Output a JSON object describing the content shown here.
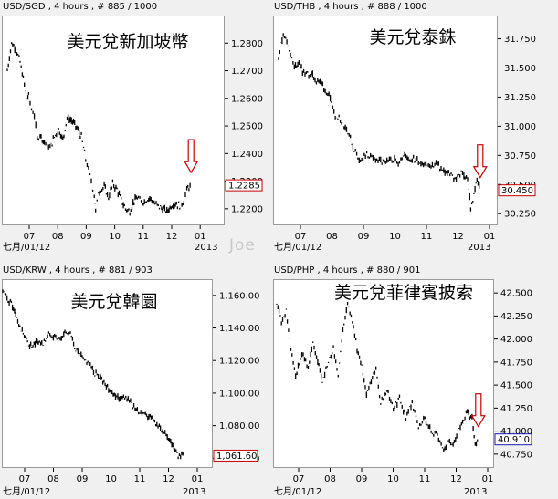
{
  "watermark": "Joe",
  "chart_data": [
    {
      "type": "line",
      "header": "USD/SGD , 4 hours , # 885 / 1000",
      "title": "美元兌新加坡幣",
      "x_ticks": [
        "07",
        "08",
        "09",
        "10",
        "11",
        "12",
        "01"
      ],
      "start_label": "七月/01/12",
      "year_label": "2013",
      "y_ticks": [
        "1.2800",
        "1.2700",
        "1.2600",
        "1.2500",
        "1.2400",
        "1.2300",
        "1.2200"
      ],
      "ylim": [
        1.214,
        1.29
      ],
      "last_value": "1.2285",
      "last_value_num": 1.2285,
      "arrow": true,
      "series_color": "#000000",
      "box_color": "#cc0000",
      "arrow_color": "#cc0000",
      "x": [
        0.0,
        0.15,
        0.3,
        0.45,
        0.6,
        0.7,
        0.75,
        0.85,
        0.95,
        1.05,
        1.15,
        1.3,
        1.4,
        1.5,
        1.65,
        1.8,
        1.95,
        2.1,
        2.25,
        2.4,
        2.6,
        2.75,
        2.85,
        2.95,
        3.05,
        3.1,
        3.2,
        3.4,
        3.55,
        3.7,
        3.85,
        4.0,
        4.15,
        4.3,
        4.45,
        4.6,
        4.7,
        4.85,
        5.0,
        5.15,
        5.3,
        5.45,
        5.6,
        5.75,
        5.9,
        6.05,
        6.2,
        6.3,
        6.45
      ],
      "values": [
        1.27,
        1.28,
        1.278,
        1.273,
        1.265,
        1.26,
        1.261,
        1.256,
        1.254,
        1.245,
        1.247,
        1.244,
        1.244,
        1.242,
        1.246,
        1.249,
        1.245,
        1.253,
        1.252,
        1.25,
        1.246,
        1.238,
        1.234,
        1.23,
        1.225,
        1.219,
        1.226,
        1.228,
        1.224,
        1.229,
        1.227,
        1.223,
        1.22,
        1.219,
        1.223,
        1.224,
        1.222,
        1.223,
        1.224,
        1.222,
        1.221,
        1.22,
        1.219,
        1.221,
        1.222,
        1.221,
        1.223,
        1.227,
        1.2285
      ]
    },
    {
      "type": "line",
      "header": "USD/THB , 4 hours , # 888 / 1000",
      "title": "美元兌泰銖",
      "x_ticks": [
        "07",
        "08",
        "09",
        "10",
        "11",
        "12",
        "01"
      ],
      "start_label": "七月/01/12",
      "year_label": "2013",
      "y_ticks": [
        "31.750",
        "31.500",
        "31.250",
        "31.000",
        "30.750",
        "30.500",
        "30.250"
      ],
      "ylim": [
        30.15,
        31.95
      ],
      "last_value": "30.450",
      "last_value_num": 30.45,
      "arrow": true,
      "series_color": "#000000",
      "box_color": "#cc0000",
      "arrow_color": "#cc0000",
      "x": [
        0.0,
        0.15,
        0.3,
        0.5,
        0.65,
        0.8,
        1.0,
        1.2,
        1.4,
        1.6,
        1.8,
        2.0,
        2.2,
        2.4,
        2.6,
        2.8,
        3.0,
        3.2,
        3.4,
        3.6,
        3.8,
        4.0,
        4.2,
        4.4,
        4.6,
        4.8,
        5.0,
        5.2,
        5.4,
        5.6,
        5.8,
        6.0,
        6.1,
        6.2,
        6.3,
        6.4
      ],
      "values": [
        31.6,
        31.8,
        31.7,
        31.5,
        31.55,
        31.45,
        31.45,
        31.4,
        31.35,
        31.25,
        31.1,
        31.05,
        30.95,
        30.8,
        30.7,
        30.75,
        30.72,
        30.7,
        30.68,
        30.72,
        30.7,
        30.75,
        30.72,
        30.7,
        30.68,
        30.65,
        30.68,
        30.62,
        30.6,
        30.55,
        30.6,
        30.55,
        30.3,
        30.4,
        30.55,
        30.45
      ]
    },
    {
      "type": "line",
      "header": "USD/KRW , 4 hours , # 881 / 903",
      "title": "美元兌韓圜",
      "x_ticks": [
        "07",
        "08",
        "09",
        "10",
        "11",
        "12",
        "01"
      ],
      "start_label": "七月/01/12",
      "year_label": "2013",
      "y_ticks": [
        "1,160.00",
        "1,140.00",
        "1,120.00",
        "1,100.00",
        "1,080.00",
        "1,060.00"
      ],
      "ylim": [
        1054,
        1170
      ],
      "last_value": "1,061.60",
      "last_value_num": 1061.6,
      "arrow": false,
      "series_color": "#000000",
      "box_color": "#cc0000",
      "x": [
        0.0,
        0.15,
        0.3,
        0.45,
        0.6,
        0.75,
        0.9,
        1.05,
        1.2,
        1.4,
        1.6,
        1.8,
        2.0,
        2.2,
        2.35,
        2.5,
        2.65,
        2.8,
        3.0,
        3.2,
        3.4,
        3.6,
        3.8,
        4.0,
        4.2,
        4.4,
        4.6,
        4.8,
        5.0,
        5.2,
        5.4,
        5.6,
        5.8,
        5.95,
        6.1,
        6.3
      ],
      "values": [
        1163,
        1158,
        1155,
        1148,
        1140,
        1135,
        1130,
        1128,
        1132,
        1130,
        1136,
        1135,
        1133,
        1138,
        1136,
        1128,
        1124,
        1121,
        1118,
        1112,
        1110,
        1105,
        1100,
        1097,
        1098,
        1095,
        1090,
        1088,
        1086,
        1084,
        1080,
        1076,
        1070,
        1066,
        1062,
        1061.6
      ]
    },
    {
      "type": "line",
      "header": "USD/PHP , 4 hours , # 880 / 901",
      "title": "美元兌菲律賓披索",
      "x_ticks": [
        "07",
        "08",
        "09",
        "10",
        "11",
        "12",
        "01"
      ],
      "start_label": "七月/01/12",
      "year_label": "2013",
      "y_ticks": [
        "42.500",
        "42.250",
        "42.000",
        "41.750",
        "41.500",
        "41.250",
        "41.000",
        "40.750"
      ],
      "ylim": [
        40.6,
        42.65
      ],
      "last_value": "40.910",
      "last_value_num": 40.91,
      "arrow": true,
      "series_color": "#000000",
      "box_color": "#1a1ab0",
      "arrow_color": "#cc0000",
      "x": [
        0.0,
        0.15,
        0.3,
        0.45,
        0.6,
        0.8,
        1.0,
        1.15,
        1.3,
        1.45,
        1.6,
        1.8,
        1.95,
        2.1,
        2.25,
        2.4,
        2.55,
        2.7,
        2.85,
        3.0,
        3.15,
        3.3,
        3.5,
        3.7,
        3.9,
        4.1,
        4.3,
        4.5,
        4.7,
        4.9,
        5.1,
        5.3,
        5.45,
        5.6,
        5.75,
        5.9,
        6.05,
        6.2,
        6.3,
        6.4
      ],
      "values": [
        42.4,
        42.2,
        42.3,
        41.9,
        41.6,
        41.85,
        41.7,
        41.95,
        41.75,
        41.55,
        41.7,
        41.9,
        41.6,
        42.1,
        42.4,
        42.2,
        41.9,
        41.7,
        41.4,
        41.55,
        41.65,
        41.3,
        41.45,
        41.25,
        41.35,
        41.15,
        41.3,
        41.05,
        41.15,
        41.0,
        40.95,
        40.8,
        40.9,
        40.85,
        41.0,
        41.1,
        41.2,
        41.15,
        40.85,
        40.91
      ]
    }
  ]
}
